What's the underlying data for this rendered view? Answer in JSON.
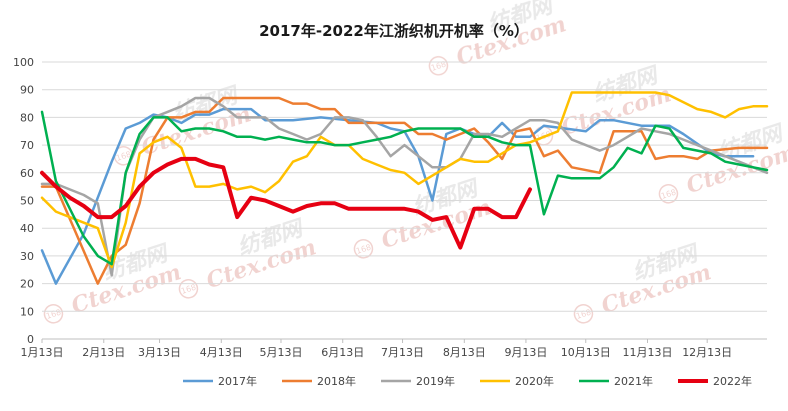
{
  "chart_data": {
    "type": "line",
    "title": "2017年-2022年江浙织机开机率（%）",
    "xlabel": "",
    "ylabel": "",
    "ylim": [
      0,
      100
    ],
    "yticks": [
      0,
      10,
      20,
      30,
      40,
      50,
      60,
      70,
      80,
      90,
      100
    ],
    "xlim": [
      0,
      52
    ],
    "x_tick_labels": [
      "1月13日",
      "2月13日",
      "3月13日",
      "4月13日",
      "5月13日",
      "6月13日",
      "7月13日",
      "8月13日",
      "9月13日",
      "10月13日",
      "11月13日",
      "12月13日"
    ],
    "x_tick_positions": [
      0,
      4.43,
      8.43,
      12.86,
      17.14,
      21.57,
      25.86,
      30.29,
      34.71,
      39.0,
      43.43,
      47.71
    ],
    "grid": "horizontal",
    "legend_position": "bottom",
    "series": [
      {
        "name": "2017年",
        "color": "#5B9BD5",
        "width": 2.5,
        "points": [
          [
            0,
            32
          ],
          [
            1,
            20
          ],
          [
            3,
            38
          ],
          [
            5,
            64
          ],
          [
            6,
            76
          ],
          [
            7,
            78
          ],
          [
            8,
            81
          ],
          [
            9,
            80
          ],
          [
            10,
            78
          ],
          [
            11,
            81
          ],
          [
            12,
            81
          ],
          [
            13,
            83
          ],
          [
            15,
            83
          ],
          [
            16,
            79
          ],
          [
            18,
            79
          ],
          [
            20,
            80
          ],
          [
            22,
            79
          ],
          [
            24,
            78
          ],
          [
            25,
            76
          ],
          [
            26,
            75
          ],
          [
            27,
            66
          ],
          [
            28,
            50
          ],
          [
            29,
            74
          ],
          [
            30,
            76
          ],
          [
            31,
            74
          ],
          [
            32,
            73
          ],
          [
            33,
            78
          ],
          [
            34,
            73
          ],
          [
            35,
            73
          ],
          [
            36,
            77
          ],
          [
            39,
            75
          ],
          [
            40,
            79
          ],
          [
            41,
            79
          ],
          [
            43,
            77
          ],
          [
            45,
            77
          ],
          [
            46,
            74
          ],
          [
            48,
            67
          ],
          [
            49,
            66
          ],
          [
            51,
            66
          ]
        ]
      },
      {
        "name": "2018年",
        "color": "#ED7D31",
        "width": 2.5,
        "points": [
          [
            0,
            55
          ],
          [
            1,
            55
          ],
          [
            4,
            20
          ],
          [
            5,
            30
          ],
          [
            6,
            34
          ],
          [
            7,
            49
          ],
          [
            8,
            72
          ],
          [
            9,
            80
          ],
          [
            10,
            80
          ],
          [
            11,
            82
          ],
          [
            12,
            82
          ],
          [
            13,
            87
          ],
          [
            17,
            87
          ],
          [
            18,
            85
          ],
          [
            19,
            85
          ],
          [
            20,
            83
          ],
          [
            21,
            83
          ],
          [
            22,
            78
          ],
          [
            23,
            78
          ],
          [
            24,
            78
          ],
          [
            25,
            78
          ],
          [
            26,
            78
          ],
          [
            27,
            74
          ],
          [
            28,
            74
          ],
          [
            29,
            72
          ],
          [
            31,
            76
          ],
          [
            32,
            71
          ],
          [
            33,
            65
          ],
          [
            34,
            75
          ],
          [
            35,
            76
          ],
          [
            36,
            66
          ],
          [
            37,
            68
          ],
          [
            38,
            62
          ],
          [
            40,
            60
          ],
          [
            41,
            75
          ],
          [
            43,
            75
          ],
          [
            44,
            65
          ],
          [
            45,
            66
          ],
          [
            46,
            66
          ],
          [
            47,
            65
          ],
          [
            48,
            68
          ],
          [
            50,
            69
          ],
          [
            52,
            69
          ]
        ]
      },
      {
        "name": "2019年",
        "color": "#A5A5A5",
        "width": 2.5,
        "points": [
          [
            0,
            56
          ],
          [
            1,
            56
          ],
          [
            3,
            52
          ],
          [
            4,
            49
          ],
          [
            5,
            23
          ],
          [
            6,
            60
          ],
          [
            7,
            72
          ],
          [
            8,
            80
          ],
          [
            9,
            82
          ],
          [
            10,
            84
          ],
          [
            11,
            87
          ],
          [
            12,
            87
          ],
          [
            13,
            84
          ],
          [
            14,
            80
          ],
          [
            16,
            80
          ],
          [
            17,
            76
          ],
          [
            18,
            74
          ],
          [
            19,
            72
          ],
          [
            20,
            74
          ],
          [
            21,
            80
          ],
          [
            22,
            80
          ],
          [
            23,
            79
          ],
          [
            24,
            73
          ],
          [
            25,
            66
          ],
          [
            26,
            70
          ],
          [
            27,
            66
          ],
          [
            28,
            62
          ],
          [
            29,
            62
          ],
          [
            30,
            65
          ],
          [
            31,
            74
          ],
          [
            32,
            74
          ],
          [
            33,
            73
          ],
          [
            34,
            76
          ],
          [
            35,
            79
          ],
          [
            36,
            79
          ],
          [
            37,
            78
          ],
          [
            38,
            72
          ],
          [
            40,
            68
          ],
          [
            41,
            70
          ],
          [
            42,
            73
          ],
          [
            43,
            76
          ],
          [
            44,
            75
          ],
          [
            45,
            74
          ],
          [
            46,
            72
          ],
          [
            48,
            68
          ],
          [
            50,
            64
          ],
          [
            51,
            62
          ],
          [
            52,
            60
          ]
        ]
      },
      {
        "name": "2020年",
        "color": "#FFC000",
        "width": 2.5,
        "points": [
          [
            0,
            51
          ],
          [
            1,
            46
          ],
          [
            3,
            42
          ],
          [
            4,
            40
          ],
          [
            5,
            26
          ],
          [
            6,
            42
          ],
          [
            7,
            67
          ],
          [
            8,
            71
          ],
          [
            9,
            73
          ],
          [
            10,
            69
          ],
          [
            11,
            55
          ],
          [
            12,
            55
          ],
          [
            13,
            56
          ],
          [
            14,
            54
          ],
          [
            15,
            55
          ],
          [
            16,
            53
          ],
          [
            17,
            57
          ],
          [
            18,
            64
          ],
          [
            19,
            66
          ],
          [
            20,
            73
          ],
          [
            21,
            70
          ],
          [
            22,
            70
          ],
          [
            23,
            65
          ],
          [
            24,
            63
          ],
          [
            25,
            61
          ],
          [
            26,
            60
          ],
          [
            27,
            56
          ],
          [
            29,
            62
          ],
          [
            30,
            65
          ],
          [
            31,
            64
          ],
          [
            32,
            64
          ],
          [
            33,
            67
          ],
          [
            34,
            70
          ],
          [
            35,
            71
          ],
          [
            37,
            75
          ],
          [
            38,
            89
          ],
          [
            43,
            89
          ],
          [
            44,
            89
          ],
          [
            45,
            88
          ],
          [
            47,
            83
          ],
          [
            48,
            82
          ],
          [
            49,
            80
          ],
          [
            50,
            83
          ],
          [
            51,
            84
          ],
          [
            52,
            84
          ]
        ]
      },
      {
        "name": "2021年",
        "color": "#00B050",
        "width": 2.5,
        "points": [
          [
            0,
            82
          ],
          [
            1,
            57
          ],
          [
            3,
            37
          ],
          [
            4,
            30
          ],
          [
            5,
            27
          ],
          [
            6,
            60
          ],
          [
            7,
            74
          ],
          [
            8,
            80
          ],
          [
            9,
            80
          ],
          [
            10,
            75
          ],
          [
            11,
            76
          ],
          [
            12,
            76
          ],
          [
            13,
            75
          ],
          [
            14,
            73
          ],
          [
            15,
            73
          ],
          [
            16,
            72
          ],
          [
            17,
            73
          ],
          [
            18,
            72
          ],
          [
            19,
            71
          ],
          [
            20,
            71
          ],
          [
            21,
            70
          ],
          [
            22,
            70
          ],
          [
            23,
            71
          ],
          [
            24,
            72
          ],
          [
            25,
            73
          ],
          [
            26,
            75
          ],
          [
            27,
            76
          ],
          [
            29,
            76
          ],
          [
            30,
            76
          ],
          [
            31,
            73
          ],
          [
            32,
            73
          ],
          [
            33,
            71
          ],
          [
            34,
            70
          ],
          [
            35,
            70
          ],
          [
            36,
            45
          ],
          [
            37,
            59
          ],
          [
            38,
            58
          ],
          [
            39,
            58
          ],
          [
            40,
            58
          ],
          [
            41,
            62
          ],
          [
            42,
            69
          ],
          [
            43,
            67
          ],
          [
            44,
            77
          ],
          [
            45,
            76
          ],
          [
            46,
            69
          ],
          [
            47,
            68
          ],
          [
            48,
            67
          ],
          [
            49,
            64
          ],
          [
            50,
            63
          ],
          [
            51,
            62
          ],
          [
            52,
            61
          ]
        ]
      },
      {
        "name": "2022年",
        "color": "#E60012",
        "width": 4,
        "points": [
          [
            0,
            60
          ],
          [
            1,
            55
          ],
          [
            2,
            51
          ],
          [
            3,
            48
          ],
          [
            4,
            44
          ],
          [
            5,
            44
          ],
          [
            6,
            48
          ],
          [
            7,
            55
          ],
          [
            8,
            60
          ],
          [
            9,
            63
          ],
          [
            10,
            65
          ],
          [
            11,
            65
          ],
          [
            12,
            63
          ],
          [
            13,
            62
          ],
          [
            14,
            44
          ],
          [
            15,
            51
          ],
          [
            16,
            50
          ],
          [
            17,
            48
          ],
          [
            18,
            46
          ],
          [
            19,
            48
          ],
          [
            20,
            49
          ],
          [
            21,
            49
          ],
          [
            22,
            47
          ],
          [
            23,
            47
          ],
          [
            24,
            47
          ],
          [
            25,
            47
          ],
          [
            26,
            47
          ],
          [
            27,
            46
          ],
          [
            28,
            43
          ],
          [
            29,
            44
          ],
          [
            30,
            33
          ],
          [
            31,
            47
          ],
          [
            32,
            47
          ],
          [
            33,
            44
          ],
          [
            34,
            44
          ],
          [
            35,
            54
          ]
        ]
      }
    ]
  },
  "watermark": {
    "brand_cn": "纺都网",
    "brand_en": "Ctex.com",
    "badge": "168"
  }
}
